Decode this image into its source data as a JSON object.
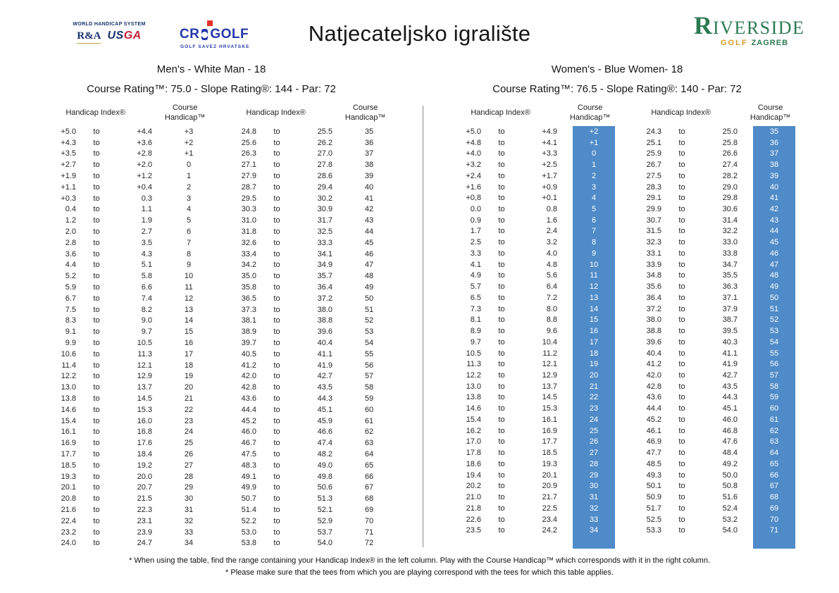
{
  "colors": {
    "accent_blue": "#4e8bc8",
    "text": "#1c1c1c",
    "whs_navy": "#16316e",
    "usga_red": "#c5203a",
    "cro_blue": "#2437aa",
    "cro_red": "#e63329",
    "riverside_green": "#2c7a52",
    "riverside_gold": "#d9992b",
    "divider": "#8a8a8a"
  },
  "header": {
    "title": "Natjecateljsko igralište",
    "logos": {
      "whs": {
        "system": "WORLD HANDICAP SYSTEM",
        "ra": "R&A",
        "usga_left": "US",
        "usga_right": "GA"
      },
      "cro": {
        "cr": "CR",
        "golf": "GOLF",
        "subtitle": "GOLF SAVEZ HRVATSKE"
      },
      "riverside": {
        "initial": "R",
        "rest": "IVERSIDE",
        "golf": "GOLF",
        "city": "ZAGREB"
      }
    }
  },
  "labels": {
    "to": "to",
    "handicap_index": "Handicap Index®",
    "course_handicap": "Course Handicap™"
  },
  "sections": [
    {
      "title": "Men's - White Man - 18",
      "rating": "Course Rating™: 75.0  - Slope Rating®: 144 - Par: 72",
      "tables": [
        {
          "rows": [
            [
              "+5.0",
              "+4.4",
              "+3"
            ],
            [
              "+4.3",
              "+3.6",
              "+2"
            ],
            [
              "+3.5",
              "+2.8",
              "+1"
            ],
            [
              "+2.7",
              "+2.0",
              "0"
            ],
            [
              "+1.9",
              "+1.2",
              "1"
            ],
            [
              "+1.1",
              "+0.4",
              "2"
            ],
            [
              "+0.3",
              "0.3",
              "3"
            ],
            [
              "0.4",
              "1.1",
              "4"
            ],
            [
              "1.2",
              "1.9",
              "5"
            ],
            [
              "2.0",
              "2.7",
              "6"
            ],
            [
              "2.8",
              "3.5",
              "7"
            ],
            [
              "3.6",
              "4.3",
              "8"
            ],
            [
              "4.4",
              "5.1",
              "9"
            ],
            [
              "5.2",
              "5.8",
              "10"
            ],
            [
              "5.9",
              "6.6",
              "11"
            ],
            [
              "6.7",
              "7.4",
              "12"
            ],
            [
              "7.5",
              "8.2",
              "13"
            ],
            [
              "8.3",
              "9.0",
              "14"
            ],
            [
              "9.1",
              "9.7",
              "15"
            ],
            [
              "9.9",
              "10.5",
              "16"
            ],
            [
              "10.6",
              "11.3",
              "17"
            ],
            [
              "11.4",
              "12.1",
              "18"
            ],
            [
              "12.2",
              "12.9",
              "19"
            ],
            [
              "13.0",
              "13.7",
              "20"
            ],
            [
              "13.8",
              "14.5",
              "21"
            ],
            [
              "14.6",
              "15.3",
              "22"
            ],
            [
              "15.4",
              "16.0",
              "23"
            ],
            [
              "16.1",
              "16.8",
              "24"
            ],
            [
              "16.9",
              "17.6",
              "25"
            ],
            [
              "17.7",
              "18.4",
              "26"
            ],
            [
              "18.5",
              "19.2",
              "27"
            ],
            [
              "19.3",
              "20.0",
              "28"
            ],
            [
              "20.1",
              "20.7",
              "29"
            ],
            [
              "20.8",
              "21.5",
              "30"
            ],
            [
              "21.6",
              "22.3",
              "31"
            ],
            [
              "22.4",
              "23.1",
              "32"
            ],
            [
              "23.2",
              "23.9",
              "33"
            ],
            [
              "24.0",
              "24.7",
              "34"
            ]
          ]
        },
        {
          "rows": [
            [
              "24.8",
              "25.5",
              "35"
            ],
            [
              "25.6",
              "26.2",
              "36"
            ],
            [
              "26.3",
              "27.0",
              "37"
            ],
            [
              "27.1",
              "27.8",
              "38"
            ],
            [
              "27.9",
              "28.6",
              "39"
            ],
            [
              "28.7",
              "29.4",
              "40"
            ],
            [
              "29.5",
              "30.2",
              "41"
            ],
            [
              "30.3",
              "30.9",
              "42"
            ],
            [
              "31.0",
              "31.7",
              "43"
            ],
            [
              "31.8",
              "32.5",
              "44"
            ],
            [
              "32.6",
              "33.3",
              "45"
            ],
            [
              "33.4",
              "34.1",
              "46"
            ],
            [
              "34.2",
              "34.9",
              "47"
            ],
            [
              "35.0",
              "35.7",
              "48"
            ],
            [
              "35.8",
              "36.4",
              "49"
            ],
            [
              "36.5",
              "37.2",
              "50"
            ],
            [
              "37.3",
              "38.0",
              "51"
            ],
            [
              "38.1",
              "38.8",
              "52"
            ],
            [
              "38.9",
              "39.6",
              "53"
            ],
            [
              "39.7",
              "40.4",
              "54"
            ],
            [
              "40.5",
              "41.1",
              "55"
            ],
            [
              "41.2",
              "41.9",
              "56"
            ],
            [
              "42.0",
              "42.7",
              "57"
            ],
            [
              "42.8",
              "43.5",
              "58"
            ],
            [
              "43.6",
              "44.3",
              "59"
            ],
            [
              "44.4",
              "45.1",
              "60"
            ],
            [
              "45.2",
              "45.9",
              "61"
            ],
            [
              "46.0",
              "46.6",
              "62"
            ],
            [
              "46.7",
              "47.4",
              "63"
            ],
            [
              "47.5",
              "48.2",
              "64"
            ],
            [
              "48.3",
              "49.0",
              "65"
            ],
            [
              "49.1",
              "49.8",
              "66"
            ],
            [
              "49.9",
              "50.6",
              "67"
            ],
            [
              "50.7",
              "51.3",
              "68"
            ],
            [
              "51.4",
              "52.1",
              "69"
            ],
            [
              "52.2",
              "52.9",
              "70"
            ],
            [
              "53.0",
              "53.7",
              "71"
            ],
            [
              "53.8",
              "54.0",
              "72"
            ]
          ]
        }
      ]
    },
    {
      "title": "Women's - Blue Women- 18",
      "rating": "Course Rating™: 76.5  - Slope Rating®: 140 - Par: 72",
      "tables": [
        {
          "rows": [
            [
              "+5.0",
              "+4.9",
              "+2"
            ],
            [
              "+4.8",
              "+4.1",
              "+1"
            ],
            [
              "+4.0",
              "+3.3",
              "0"
            ],
            [
              "+3.2",
              "+2.5",
              "1"
            ],
            [
              "+2.4",
              "+1.7",
              "2"
            ],
            [
              "+1.6",
              "+0.9",
              "3"
            ],
            [
              "+0,8",
              "+0.1",
              "4"
            ],
            [
              "0.0",
              "0.8",
              "5"
            ],
            [
              "0.9",
              "1.6",
              "6"
            ],
            [
              "1.7",
              "2.4",
              "7"
            ],
            [
              "2.5",
              "3.2",
              "8"
            ],
            [
              "3.3",
              "4.0",
              "9"
            ],
            [
              "4.1",
              "4.8",
              "10"
            ],
            [
              "4.9",
              "5.6",
              "11"
            ],
            [
              "5.7",
              "6.4",
              "12"
            ],
            [
              "6.5",
              "7.2",
              "13"
            ],
            [
              "7.3",
              "8.0",
              "14"
            ],
            [
              "8.1",
              "8.8",
              "15"
            ],
            [
              "8.9",
              "9.6",
              "16"
            ],
            [
              "9.7",
              "10.4",
              "17"
            ],
            [
              "10.5",
              "11.2",
              "18"
            ],
            [
              "11.3",
              "12.1",
              "19"
            ],
            [
              "12.2",
              "12.9",
              "20"
            ],
            [
              "13.0",
              "13.7",
              "21"
            ],
            [
              "13.8",
              "14.5",
              "22"
            ],
            [
              "14.6",
              "15.3",
              "23"
            ],
            [
              "15.4",
              "16.1",
              "24"
            ],
            [
              "16.2",
              "16.9",
              "25"
            ],
            [
              "17.0",
              "17.7",
              "26"
            ],
            [
              "17.8",
              "18.5",
              "27"
            ],
            [
              "18.6",
              "19.3",
              "28"
            ],
            [
              "19.4",
              "20.1",
              "29"
            ],
            [
              "20.2",
              "20.9",
              "30"
            ],
            [
              "21.0",
              "21.7",
              "31"
            ],
            [
              "21.8",
              "22.5",
              "32"
            ],
            [
              "22.6",
              "23.4",
              "33"
            ],
            [
              "23.5",
              "24.2",
              "34"
            ]
          ]
        },
        {
          "rows": [
            [
              "24.3",
              "25.0",
              "35"
            ],
            [
              "25.1",
              "25.8",
              "36"
            ],
            [
              "25.9",
              "26.6",
              "37"
            ],
            [
              "26.7",
              "27.4",
              "38"
            ],
            [
              "27.5",
              "28.2",
              "39"
            ],
            [
              "28.3",
              "29.0",
              "40"
            ],
            [
              "29.1",
              "29.8",
              "41"
            ],
            [
              "29.9",
              "30.6",
              "42"
            ],
            [
              "30.7",
              "31.4",
              "43"
            ],
            [
              "31.5",
              "32.2",
              "44"
            ],
            [
              "32.3",
              "33.0",
              "45"
            ],
            [
              "33.1",
              "33.8",
              "46"
            ],
            [
              "33.9",
              "34.7",
              "47"
            ],
            [
              "34.8",
              "35.5",
              "48"
            ],
            [
              "35.6",
              "36.3",
              "49"
            ],
            [
              "36.4",
              "37.1",
              "50"
            ],
            [
              "37.2",
              "37.9",
              "51"
            ],
            [
              "38.0",
              "38.7",
              "52"
            ],
            [
              "38.8",
              "39.5",
              "53"
            ],
            [
              "39.6",
              "40.3",
              "54"
            ],
            [
              "40.4",
              "41.1",
              "55"
            ],
            [
              "41.2",
              "41.9",
              "56"
            ],
            [
              "42.0",
              "42.7",
              "57"
            ],
            [
              "42.8",
              "43.5",
              "58"
            ],
            [
              "43.6",
              "44.3",
              "59"
            ],
            [
              "44.4",
              "45.1",
              "60"
            ],
            [
              "45.2",
              "46.0",
              "61"
            ],
            [
              "46.1",
              "46.8",
              "62"
            ],
            [
              "46.9",
              "47.6",
              "63"
            ],
            [
              "47.7",
              "48.4",
              "64"
            ],
            [
              "48.5",
              "49.2",
              "65"
            ],
            [
              "49.3",
              "50.0",
              "66"
            ],
            [
              "50.1",
              "50.8",
              "67"
            ],
            [
              "50.9",
              "51.6",
              "68"
            ],
            [
              "51.7",
              "52.4",
              "69"
            ],
            [
              "52.5",
              "53.2",
              "70"
            ],
            [
              "53.3",
              "54.0",
              "71"
            ]
          ]
        }
      ]
    }
  ],
  "footnotes": [
    "* When using the table, find the range containing your Handicap Index® in the left column. Play with the Course Handicap™ which corresponds with it in the right column.",
    "* Please make sure that the tees from which you are playing correspond with the tees for which this table applies."
  ]
}
